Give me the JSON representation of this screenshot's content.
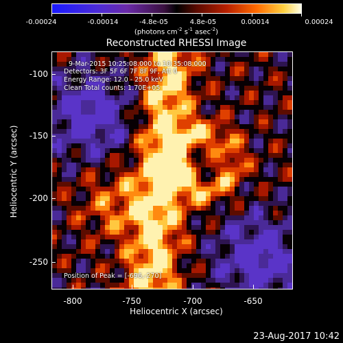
{
  "colorbar": {
    "ticks": [
      "-0.00024",
      "-0.00014",
      "-4.8e-05",
      "4.8e-05",
      "0.00014",
      "0.00024"
    ],
    "units_main": "(photons cm",
    "units_sup1": "-2",
    "units_mid": " s",
    "units_sup2": "-1",
    "units_mid2": " asec",
    "units_sup3": "-2",
    "units_end": ")"
  },
  "title": "Reconstructed RHESSI Image",
  "overlay": {
    "time_range": "9-Mar-2015 10:25:08.000 to 10:35:08.000",
    "detectors": "Detectors: 3F 5F 6F 7F 8F 9F, Att 0",
    "energy": "Energy Range: 12.0 - 25.0 keV",
    "clean": "Clean    Total counts: 1.70E+05",
    "peak": "Position of Peak = [-696,-270]"
  },
  "axes": {
    "xlabel": "Heliocentric X (arcsec)",
    "ylabel": "Heliocentric Y (arcsec)",
    "xticks": [
      "-800",
      "-750",
      "-700",
      "-650"
    ],
    "yticks": [
      "-100",
      "-150",
      "-200",
      "-250"
    ]
  },
  "timestamp": "23-Aug-2017 10:42"
}
